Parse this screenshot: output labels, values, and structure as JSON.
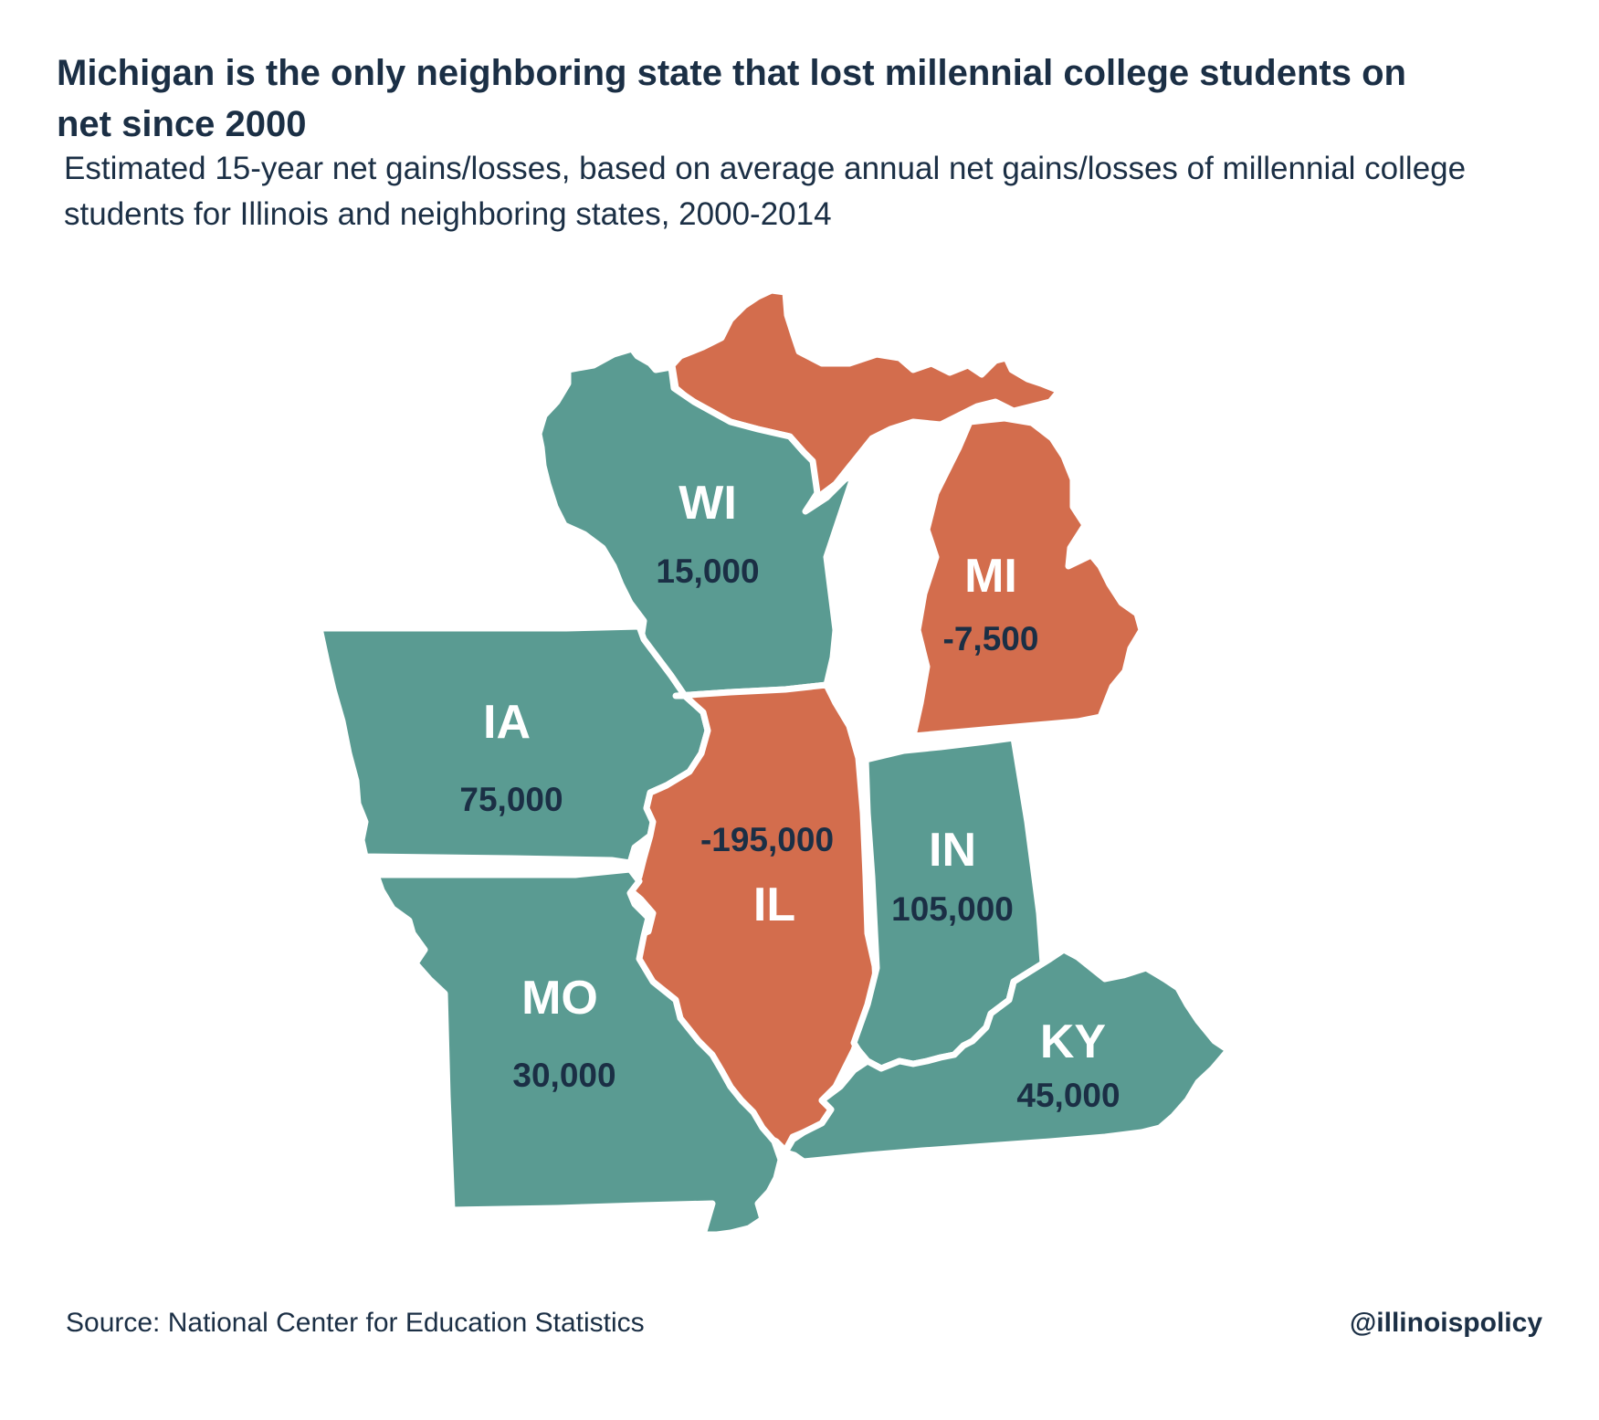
{
  "title": "Michigan is the only neighboring state that lost millennial college students on net since 2000",
  "subtitle": "Estimated 15-year net gains/losses, based on average annual net gains/losses of millennial college students for Illinois and neighboring states, 2000-2014",
  "colors": {
    "gain": "#5a9b92",
    "loss": "#d36d4d",
    "text": "#1b2f45"
  },
  "states": {
    "WI": {
      "abbr": "WI",
      "value": "15,000",
      "net": 15000
    },
    "MI": {
      "abbr": "MI",
      "value": "-7,500",
      "net": -7500
    },
    "IA": {
      "abbr": "IA",
      "value": "75,000",
      "net": 75000
    },
    "IL": {
      "abbr": "IL",
      "value": "-195,000",
      "net": -195000
    },
    "IN": {
      "abbr": "IN",
      "value": "105,000",
      "net": 105000
    },
    "MO": {
      "abbr": "MO",
      "value": "30,000",
      "net": 30000
    },
    "KY": {
      "abbr": "KY",
      "value": "45,000",
      "net": 45000
    }
  },
  "footer": {
    "source": "Source: National Center for Education Statistics",
    "handle": "@illinoispolicy"
  }
}
